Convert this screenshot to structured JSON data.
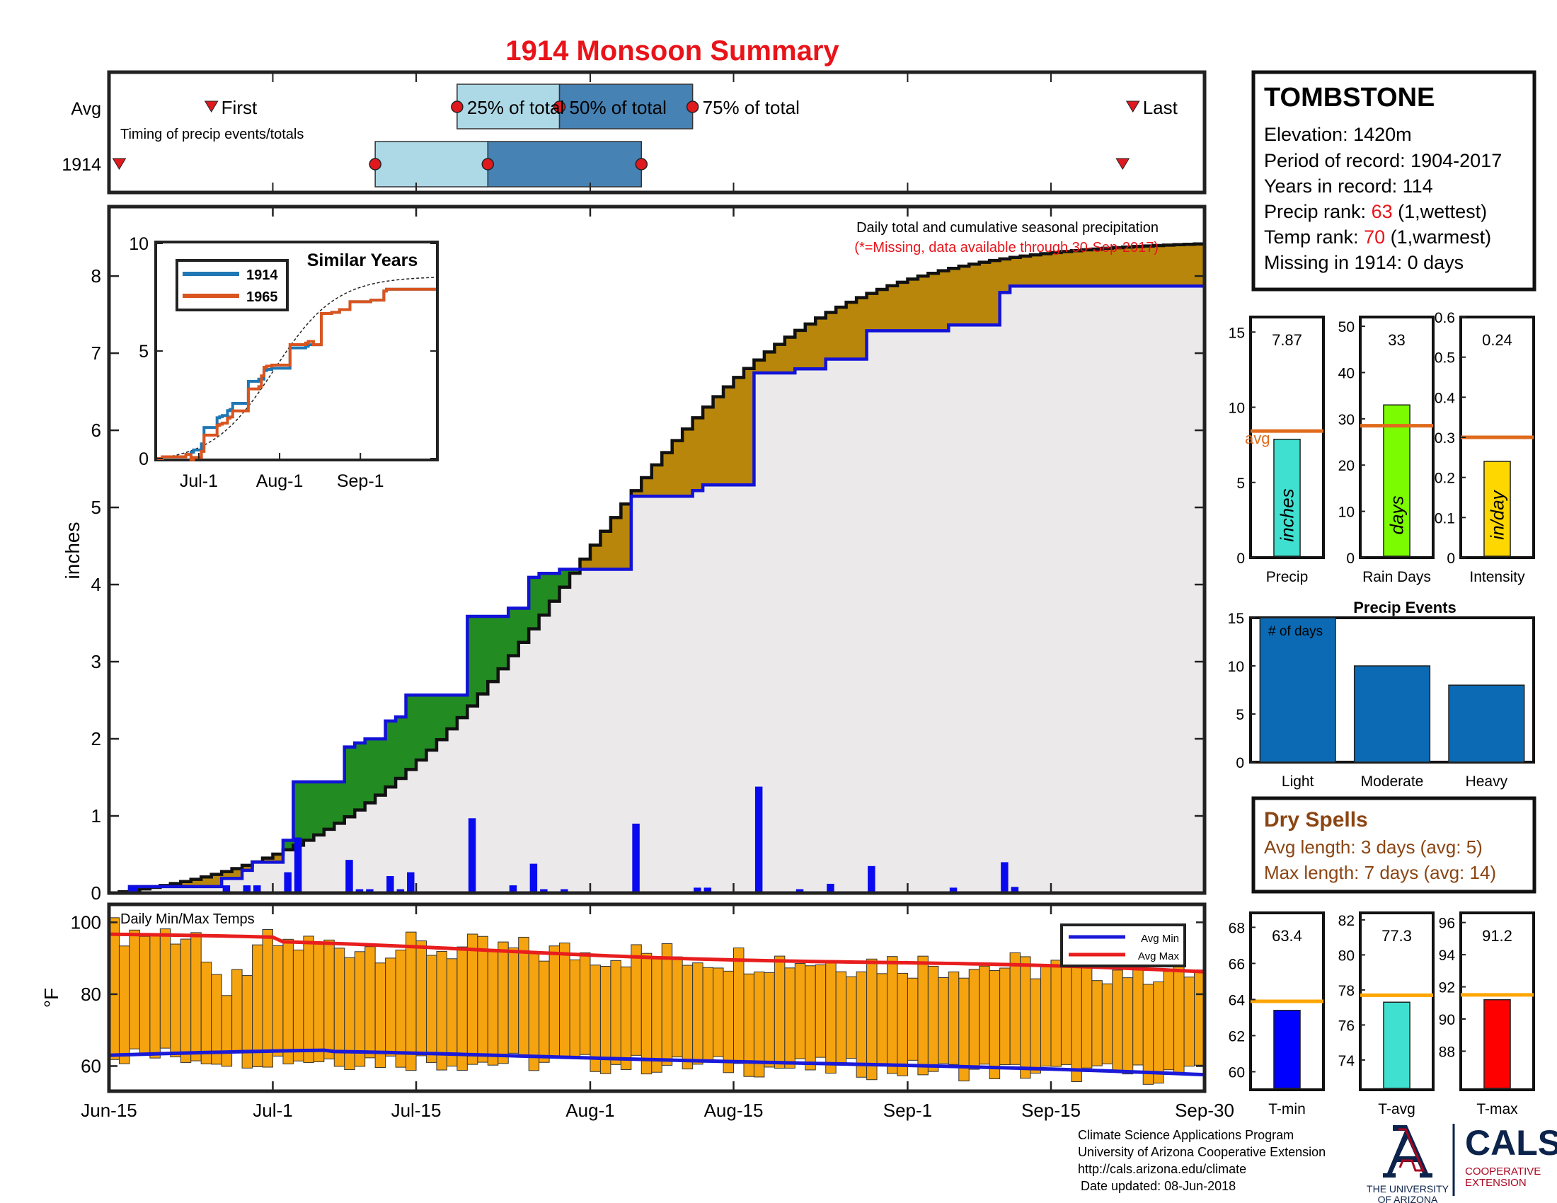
{
  "title": "1914 Monsoon Summary",
  "colors": {
    "title": "#e8141a",
    "q1": "#add8e6",
    "q2": "#4682b4",
    "event_marker": "#e0191f",
    "obs_line": "#1212d8",
    "avg_line": "#111111",
    "above_fill": "#228b22",
    "below_fill": "#b8860b",
    "bg_fill": "#ebe9e9",
    "daily_bar": "#0a0af0",
    "temp_bar": "#f5a30f",
    "avg_min": "#1a1ad8",
    "avg_max": "#e81e1e",
    "avg_ref": "#e06a1c",
    "tmin_bar": "#0000ff",
    "tavg_bar": "#40e0d0",
    "tmax_bar": "#ff0000",
    "precip_bar": "#40e0d0",
    "days_bar": "#7cfc00",
    "intensity_bar": "#ffd700",
    "events_bar": "#0b6ab3",
    "dry_text": "#8b4513",
    "rank_red": "#e8141a"
  },
  "timing": {
    "row_avg": "Avg",
    "row_year": "1914",
    "caption": "Timing of precip events/totals",
    "first_label": "First",
    "last_label": "Last",
    "p25_label": "25% of total",
    "p50_label": "50% of total",
    "p75_label": "75% of total"
  },
  "station": {
    "name": "TOMBSTONE",
    "elevation": "Elevation: 1420m",
    "period": "Period of record: 1904-2017",
    "years": "Years in record: 114",
    "precip_rank_label": "Precip rank:",
    "precip_rank_value": "63",
    "precip_rank_note": "(1,wettest)",
    "temp_rank_label": "Temp rank:",
    "temp_rank_value": "70",
    "temp_rank_note": "(1,warmest)",
    "missing": "Missing in 1914: 0 days"
  },
  "main": {
    "ylabel": "inches",
    "note1": "Daily total and cumulative seasonal precipitation",
    "note2": "(*=Missing, data available through 30-Sep-2017)"
  },
  "inset": {
    "title": "Similar Years",
    "legend1": "1914",
    "legend2": "1965"
  },
  "temps": {
    "title": "Daily Min/Max Temps",
    "ylabel": "°F",
    "legend_min": "Avg Min",
    "legend_max": "Avg Max"
  },
  "events": {
    "title": "Precip Events",
    "note": "# of days"
  },
  "dry": {
    "title": "Dry Spells",
    "avg": "Avg length: 3 days (avg: 5)",
    "max": "Max length: 7 days (avg: 14)"
  },
  "footer": {
    "line1": "Climate Science Applications Program",
    "line2": "University of Arizona Cooperative Extension",
    "line3": "http://cals.arizona.edu/climate",
    "line4": "Date updated: 08-Jun-2018"
  },
  "logos": {
    "ua_top": "THE UNIVERSITY",
    "ua_bottom": "OF ARIZONA",
    "cals": "CALS",
    "coop1": "COOPERATIVE",
    "coop2": "EXTENSION"
  },
  "chart_data": [
    {
      "id": "timing",
      "type": "box",
      "avg": {
        "first": "Jun-26",
        "p25": "Jul-19",
        "p50": "Jul-29",
        "p75": "Aug-11",
        "last": "Sep-23"
      },
      "year": {
        "first": "Jun-17",
        "p25": "Jul-11",
        "p50": "Jul-22",
        "p75": "Aug-6",
        "last": "Sep-22"
      }
    },
    {
      "id": "cumulative",
      "type": "area",
      "xlabels": [
        "Jun-15",
        "Jul-1",
        "Jul-15",
        "Aug-1",
        "Aug-15",
        "Sep-1",
        "Sep-15",
        "Sep-30"
      ],
      "xlabel_days": [
        0,
        16,
        30,
        47,
        61,
        78,
        92,
        107
      ],
      "ylabel": "inches",
      "ylim": [
        0,
        8.9
      ],
      "yticks": [
        0,
        1,
        2,
        3,
        4,
        5,
        6,
        7,
        8
      ],
      "daily_precip": [
        [
          2,
          0.08
        ],
        [
          11,
          0.1
        ],
        [
          13,
          0.1
        ],
        [
          14,
          0.1
        ],
        [
          17,
          0.27
        ],
        [
          18,
          0.72
        ],
        [
          23,
          0.43
        ],
        [
          24,
          0.05
        ],
        [
          25,
          0.05
        ],
        [
          27,
          0.22
        ],
        [
          28,
          0.05
        ],
        [
          29,
          0.27
        ],
        [
          35,
          0.97
        ],
        [
          39,
          0.1
        ],
        [
          41,
          0.38
        ],
        [
          42,
          0.05
        ],
        [
          44,
          0.05
        ],
        [
          51,
          0.9
        ],
        [
          57,
          0.07
        ],
        [
          58,
          0.07
        ],
        [
          63,
          1.38
        ],
        [
          67,
          0.05
        ],
        [
          70,
          0.12
        ],
        [
          74,
          0.35
        ],
        [
          82,
          0.07
        ],
        [
          87,
          0.4
        ],
        [
          88,
          0.08
        ]
      ],
      "cumulative_1914_total": 7.87,
      "cumulative_avg_total": 8.42
    },
    {
      "id": "similar_years",
      "type": "line",
      "xlabels": [
        "Jul-1",
        "Aug-1",
        "Sep-1"
      ],
      "yticks": [
        0,
        5,
        10
      ],
      "ylim": [
        0,
        10
      ],
      "series": [
        {
          "name": "1914"
        },
        {
          "name": "1965"
        }
      ]
    },
    {
      "id": "temps",
      "type": "bar",
      "ylabel": "°F",
      "yticks": [
        60,
        80,
        100
      ],
      "ylim": [
        53,
        105
      ],
      "series": [
        {
          "name": "Avg Min",
          "start": 63,
          "end": 57.5
        },
        {
          "name": "Avg Max",
          "start": 95.5,
          "end": 86
        }
      ]
    },
    {
      "id": "precip_gauge",
      "type": "bar",
      "xlabel": "Precip",
      "bar_label": "inches",
      "value": 7.87,
      "value_text": "7.87",
      "avg": 8.42,
      "avg_label": "avg",
      "yticks": [
        0,
        5,
        10,
        15
      ],
      "ylim": [
        0,
        16
      ]
    },
    {
      "id": "raindays_gauge",
      "type": "bar",
      "xlabel": "Rain Days",
      "bar_label": "days",
      "value": 33,
      "value_text": "33",
      "avg": 28.5,
      "yticks": [
        0,
        10,
        20,
        30,
        40,
        50
      ],
      "ylim": [
        0,
        52
      ]
    },
    {
      "id": "intensity_gauge",
      "type": "bar",
      "xlabel": "Intensity",
      "bar_label": "in/day",
      "value": 0.24,
      "value_text": "0.24",
      "avg": 0.3,
      "yticks": [
        0,
        0.1,
        0.2,
        0.3,
        0.4,
        0.5,
        0.6
      ],
      "ytick_labels": [
        "0",
        "0.1",
        "0.2",
        "0.3",
        "0.4",
        "0.5",
        "0.6"
      ],
      "ylim": [
        0,
        0.6
      ]
    },
    {
      "id": "precip_events",
      "type": "bar",
      "title": "Precip Events",
      "categories": [
        "Light",
        "Moderate",
        "Heavy"
      ],
      "values": [
        15,
        10,
        8
      ],
      "yticks": [
        0,
        5,
        10,
        15
      ],
      "ylim": [
        0,
        15
      ]
    },
    {
      "id": "tmin_gauge",
      "type": "bar",
      "xlabel": "T-min",
      "value": 63.4,
      "value_text": "63.4",
      "avg": 63.9,
      "yticks": [
        60,
        62,
        64,
        66,
        68
      ],
      "ylim": [
        59,
        68.8
      ]
    },
    {
      "id": "tavg_gauge",
      "type": "bar",
      "xlabel": "T-avg",
      "value": 77.3,
      "value_text": "77.3",
      "avg": 77.7,
      "yticks": [
        74,
        76,
        78,
        80,
        82
      ],
      "ylim": [
        72.3,
        82.4
      ]
    },
    {
      "id": "tmax_gauge",
      "type": "bar",
      "xlabel": "T-max",
      "value": 91.2,
      "value_text": "91.2",
      "avg": 91.5,
      "yticks": [
        88,
        90,
        92,
        94,
        96
      ],
      "ylim": [
        85.6,
        96.6
      ]
    }
  ]
}
